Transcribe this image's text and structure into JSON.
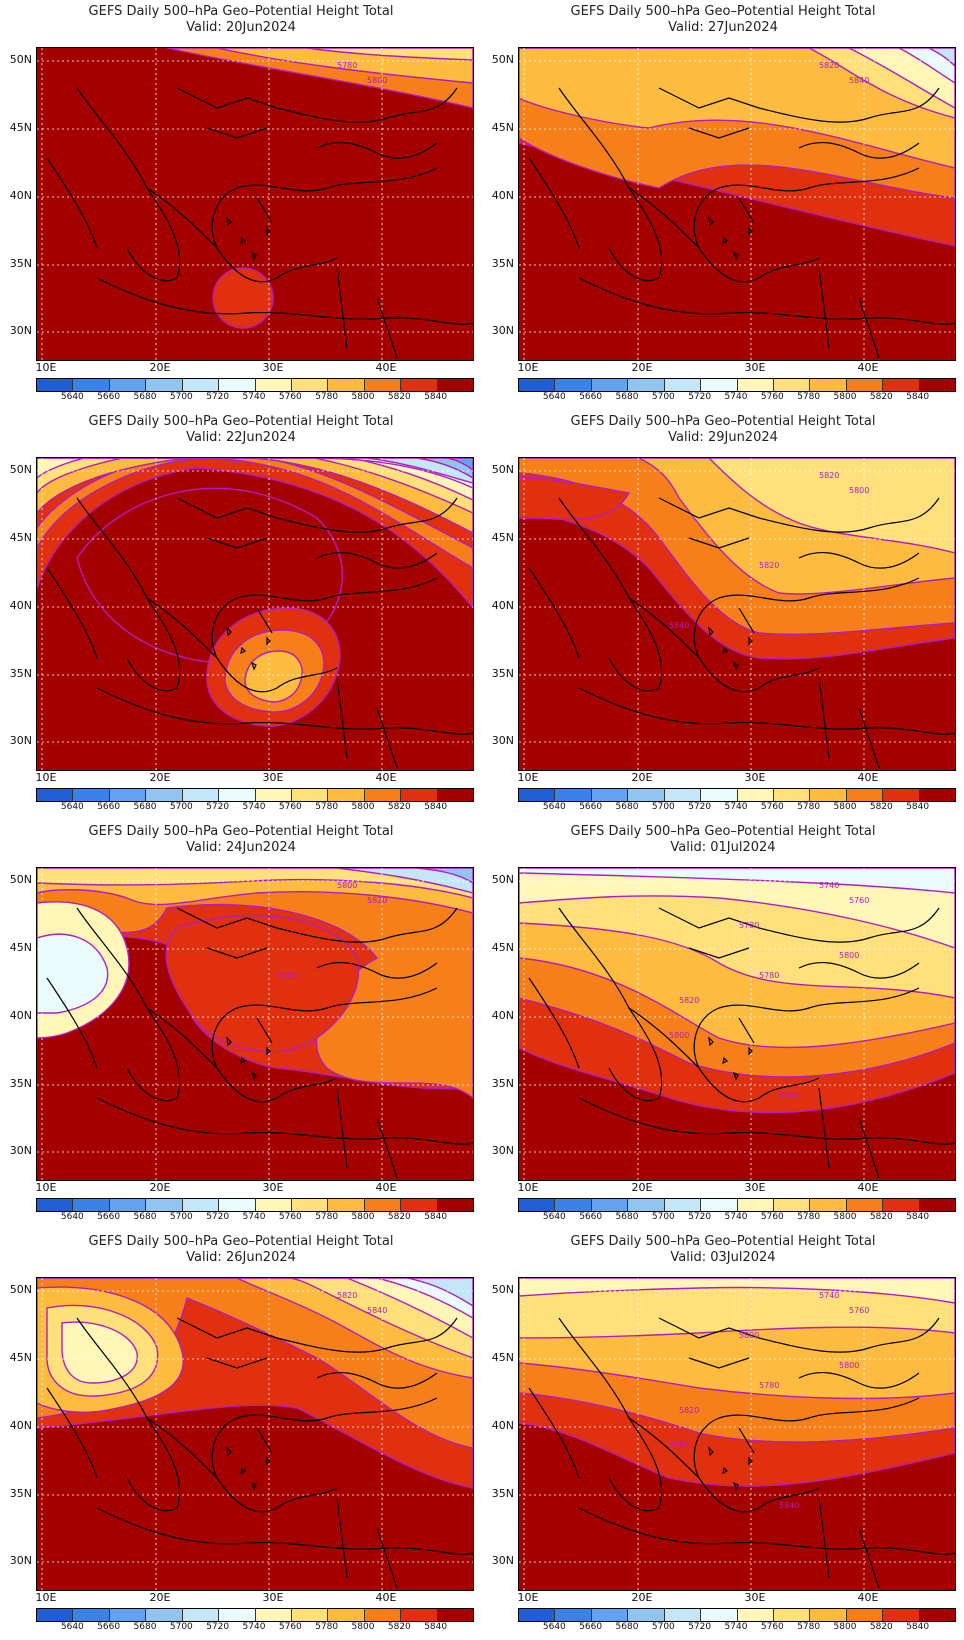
{
  "panels": [
    {
      "title": "GEFS Daily 500–hPa Geo–Potential Height Total",
      "valid": "Valid: 20Jun2024",
      "labels": [
        "5780",
        "5800"
      ],
      "scenario": 0
    },
    {
      "title": "GEFS Daily 500–hPa Geo–Potential Height Total",
      "valid": "Valid: 27Jun2024",
      "labels": [
        "5820",
        "5840"
      ],
      "scenario": 1
    },
    {
      "title": "GEFS Daily 500–hPa Geo–Potential Height Total",
      "valid": "Valid: 22Jun2024",
      "labels": [],
      "scenario": 2
    },
    {
      "title": "GEFS Daily 500–hPa Geo–Potential Height Total",
      "valid": "Valid: 29Jun2024",
      "labels": [
        "5820",
        "5800",
        "5820",
        "5840"
      ],
      "scenario": 3
    },
    {
      "title": "GEFS Daily 500–hPa Geo–Potential Height Total",
      "valid": "Valid: 24Jun2024",
      "labels": [
        "5800",
        "5820",
        "5840"
      ],
      "scenario": 4
    },
    {
      "title": "GEFS Daily 500–hPa Geo–Potential Height Total",
      "valid": "Valid: 01Jul2024",
      "labels": [
        "5740",
        "5760",
        "5780",
        "5800",
        "5780",
        "5800",
        "5820",
        "5840"
      ],
      "scenario": 5
    },
    {
      "title": "GEFS Daily 500–hPa Geo–Potential Height Total",
      "valid": "Valid: 26Jun2024",
      "labels": [
        "5820",
        "5840"
      ],
      "scenario": 6
    },
    {
      "title": "GEFS Daily 500–hPa Geo–Potential Height Total",
      "valid": "Valid: 03Jul2024",
      "labels": [
        "5740",
        "5760",
        "5780",
        "5780",
        "5800",
        "5800",
        "5820",
        "5840"
      ],
      "scenario": 7
    }
  ],
  "axes": {
    "lat_labels": [
      "50N",
      "45N",
      "40N",
      "35N",
      "30N"
    ],
    "lon_labels": [
      "10E",
      "20E",
      "30E",
      "40E"
    ]
  },
  "colorbar": {
    "labels": [
      "5640",
      "5660",
      "5680",
      "5700",
      "5720",
      "5740",
      "5760",
      "5780",
      "5800",
      "5820",
      "5840"
    ],
    "colors": [
      "#1f5fd6",
      "#3b82e8",
      "#62a2f0",
      "#92c4f2",
      "#c3e6f8",
      "#e9fbfd",
      "#fff6b8",
      "#ffe07a",
      "#fdbb3f",
      "#f77f1a",
      "#e03010",
      "#a50000"
    ]
  },
  "styles": {
    "contour_color": "#b01ec0",
    "coast_color": "#000000"
  }
}
